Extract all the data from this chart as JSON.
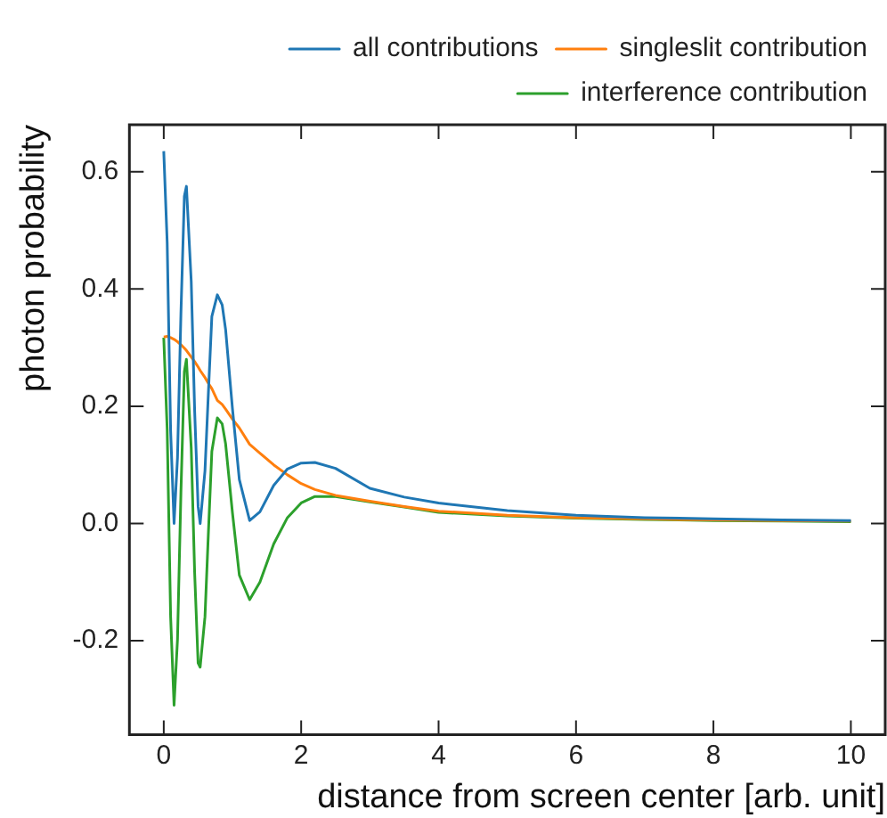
{
  "chart_data": {
    "type": "line",
    "xlabel": "distance from screen center [arb. unit]",
    "ylabel": "photon probability",
    "x": [
      0,
      0.05,
      0.1,
      0.15,
      0.2,
      0.25,
      0.3,
      0.33,
      0.4,
      0.45,
      0.5,
      0.53,
      0.6,
      0.65,
      0.7,
      0.78,
      0.85,
      0.9,
      1.0,
      1.1,
      1.25,
      1.4,
      1.6,
      1.8,
      2.0,
      2.2,
      2.5,
      3,
      3.5,
      4,
      5,
      6,
      7,
      8,
      9,
      10
    ],
    "series": [
      {
        "name": "all contributions",
        "color": "#1f77b4",
        "values": [
          0.635,
          0.479,
          0.158,
          0.0,
          0.112,
          0.358,
          0.558,
          0.575,
          0.413,
          0.191,
          0.029,
          0.0,
          0.09,
          0.224,
          0.353,
          0.39,
          0.373,
          0.331,
          0.196,
          0.075,
          0.005,
          0.02,
          0.065,
          0.093,
          0.103,
          0.104,
          0.094,
          0.06,
          0.045,
          0.035,
          0.022,
          0.014,
          0.01,
          0.008,
          0.006,
          0.005
        ]
      },
      {
        "name": "singleslit contribution",
        "color": "#ff7f0e",
        "values": [
          0.318,
          0.319,
          0.317,
          0.314,
          0.31,
          0.305,
          0.299,
          0.295,
          0.284,
          0.276,
          0.267,
          0.261,
          0.249,
          0.239,
          0.23,
          0.21,
          0.203,
          0.195,
          0.178,
          0.163,
          0.135,
          0.12,
          0.1,
          0.083,
          0.068,
          0.058,
          0.048,
          0.038,
          0.029,
          0.021,
          0.014,
          0.01,
          0.008,
          0.006,
          0.005,
          0.004
        ]
      },
      {
        "name": "interference contribution",
        "color": "#2ca02c",
        "values": [
          0.317,
          0.16,
          -0.159,
          -0.31,
          -0.198,
          0.053,
          0.259,
          0.28,
          0.129,
          -0.085,
          -0.238,
          -0.245,
          -0.159,
          -0.015,
          0.123,
          0.18,
          0.17,
          0.136,
          0.018,
          -0.088,
          -0.13,
          -0.1,
          -0.035,
          0.01,
          0.035,
          0.046,
          0.046,
          0.037,
          0.028,
          0.019,
          0.013,
          0.009,
          0.007,
          0.005,
          0.004,
          0.003
        ]
      }
    ],
    "xlim": [
      -0.5,
      10.5
    ],
    "xticks": [
      0,
      2,
      4,
      6,
      8,
      10
    ],
    "ylim": [
      -0.36,
      0.68
    ],
    "yticks": [
      {
        "value": -0.2,
        "label": "-0.2"
      },
      {
        "value": 0,
        "label": "0.0"
      },
      {
        "value": 0.2,
        "label": "0.2"
      },
      {
        "value": 0.4,
        "label": "0.4"
      },
      {
        "value": 0.6,
        "label": "0.6"
      }
    ],
    "grid": false,
    "legend": "top right",
    "marker": "none",
    "line_style": "solid"
  }
}
